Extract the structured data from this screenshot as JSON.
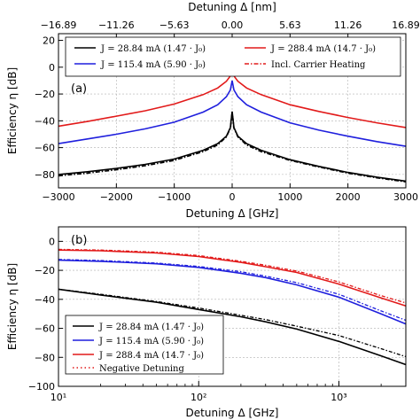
{
  "chart_data": [
    {
      "panel_label": "(a)",
      "type": "line",
      "xlabel": "Detuning Δ [GHz]",
      "ylabel": "Efficiency η [dB]",
      "top_xlabel": "Detuning Δ [nm]",
      "xlim": [
        -3000,
        3000
      ],
      "ylim": [
        -90,
        25
      ],
      "xticks": [
        -3000,
        -2000,
        -1000,
        0,
        1000,
        2000,
        3000
      ],
      "xtick_labels": [
        "−3000",
        "−2000",
        "−1000",
        "0",
        "1000",
        "2000",
        "3000"
      ],
      "yticks": [
        -80,
        -60,
        -40,
        -20,
        0,
        20
      ],
      "ytick_labels": [
        "−80",
        "−60",
        "−40",
        "−20",
        "0",
        "20"
      ],
      "top_xticks": [
        -3000,
        -2000,
        -1000,
        0,
        1000,
        2000,
        3000
      ],
      "top_xtick_labels": [
        "−16.89",
        "−11.26",
        "−5.63",
        "0.00",
        "5.63",
        "11.26",
        "16.89"
      ],
      "grid": true,
      "legend_position": "top",
      "x": [
        -3000,
        -2500,
        -2000,
        -1500,
        -1000,
        -500,
        -250,
        -100,
        -30,
        0,
        30,
        100,
        250,
        500,
        1000,
        1500,
        2000,
        2500,
        3000
      ],
      "series": [
        {
          "name": "J = 28.84 mA (1.47 · J0)",
          "color": "#000000",
          "values": [
            -80,
            -78,
            -75.5,
            -72.5,
            -68.5,
            -62,
            -57,
            -51.5,
            -45,
            -33,
            -45,
            -51.5,
            -57,
            -62,
            -69,
            -74,
            -78.5,
            -82,
            -85
          ]
        },
        {
          "name": "J = 115.4 mA (5.90 · J0)",
          "color": "#1f1fdd",
          "values": [
            -57,
            -53.5,
            -50,
            -46,
            -41,
            -33.5,
            -28,
            -22,
            -17,
            -10,
            -17,
            -22,
            -28,
            -33.5,
            -41.5,
            -47,
            -51.5,
            -55.5,
            -59
          ]
        },
        {
          "name": "J = 288.4 mA (14.7 · J0)",
          "color": "#e21a1a",
          "values": [
            -44,
            -40.5,
            -36.5,
            -32.5,
            -27.5,
            -20.5,
            -15.5,
            -10.5,
            -6.5,
            -4,
            -6.5,
            -10.5,
            -15.5,
            -20.5,
            -28,
            -33,
            -37.5,
            -41.5,
            -45
          ]
        },
        {
          "name": "Incl. Carrier Heating",
          "style": "dash-dot",
          "color": "#000000",
          "values": [
            -81,
            -79,
            -76.5,
            -73.5,
            -69.5,
            -63,
            -58,
            -52,
            -45.5,
            -33.5,
            -45.5,
            -52,
            -58,
            -63,
            -69.5,
            -74.5,
            -79,
            -82.5,
            -85.5
          ]
        }
      ]
    },
    {
      "panel_label": "(b)",
      "type": "line",
      "xlabel": "Detuning Δ [GHz]",
      "ylabel": "Efficiency η [dB]",
      "xscale": "log",
      "xlim": [
        10,
        3000
      ],
      "ylim": [
        -100,
        10
      ],
      "xticks": [
        10,
        100,
        1000
      ],
      "xtick_labels": [
        "10¹",
        "10²",
        "10³"
      ],
      "yticks": [
        -100,
        -80,
        -60,
        -40,
        -20,
        0
      ],
      "ytick_labels": [
        "−100",
        "−80",
        "−60",
        "−40",
        "−20",
        "0"
      ],
      "grid": true,
      "legend_position": "lower-left",
      "x": [
        10,
        20,
        50,
        100,
        200,
        300,
        500,
        1000,
        2000,
        3000
      ],
      "series": [
        {
          "name": "J = 28.84 mA (1.47 · J0)",
          "color": "#000000",
          "values": [
            -33,
            -37,
            -42,
            -47,
            -52,
            -55.5,
            -60.5,
            -69,
            -79,
            -85
          ]
        },
        {
          "name": "J = 115.4 mA (5.90 · J0)",
          "color": "#1f1fdd",
          "values": [
            -13,
            -13.8,
            -15.5,
            -18,
            -22,
            -25,
            -30,
            -38.5,
            -50,
            -57
          ]
        },
        {
          "name": "J = 288.4 mA (14.7 · J0)",
          "color": "#e21a1a",
          "values": [
            -6,
            -6.5,
            -8,
            -10.5,
            -14.5,
            -17.5,
            -21.5,
            -29.5,
            -39,
            -44.5
          ]
        },
        {
          "name": "Negative Detuning",
          "style": "dash-dot",
          "color": "#000000",
          "values_black": [
            -33,
            -36.5,
            -41.5,
            -46,
            -51,
            -54,
            -58.5,
            -65,
            -74,
            -79.5
          ],
          "values_blue": [
            -12.5,
            -13.2,
            -15,
            -17.3,
            -21,
            -24,
            -28.5,
            -36.5,
            -48,
            -54.5
          ],
          "values_red": [
            -5.5,
            -6,
            -7.5,
            -9.8,
            -13.8,
            -16.5,
            -20.5,
            -28,
            -37.5,
            -42.5
          ]
        }
      ]
    }
  ],
  "legend_a": {
    "e1": "J = 28.84 mA (1.47 · J₀)",
    "e2": "J = 115.4 mA (5.90 · J₀)",
    "e3": "J = 288.4 mA (14.7 · J₀)",
    "e4": "Incl. Carrier Heating"
  },
  "legend_b": {
    "e1": "J = 28.84 mA (1.47 · J₀)",
    "e2": "J = 115.4 mA (5.90 · J₀)",
    "e3": "J = 288.4 mA (14.7 · J₀)",
    "e4": "Negative Detuning"
  }
}
